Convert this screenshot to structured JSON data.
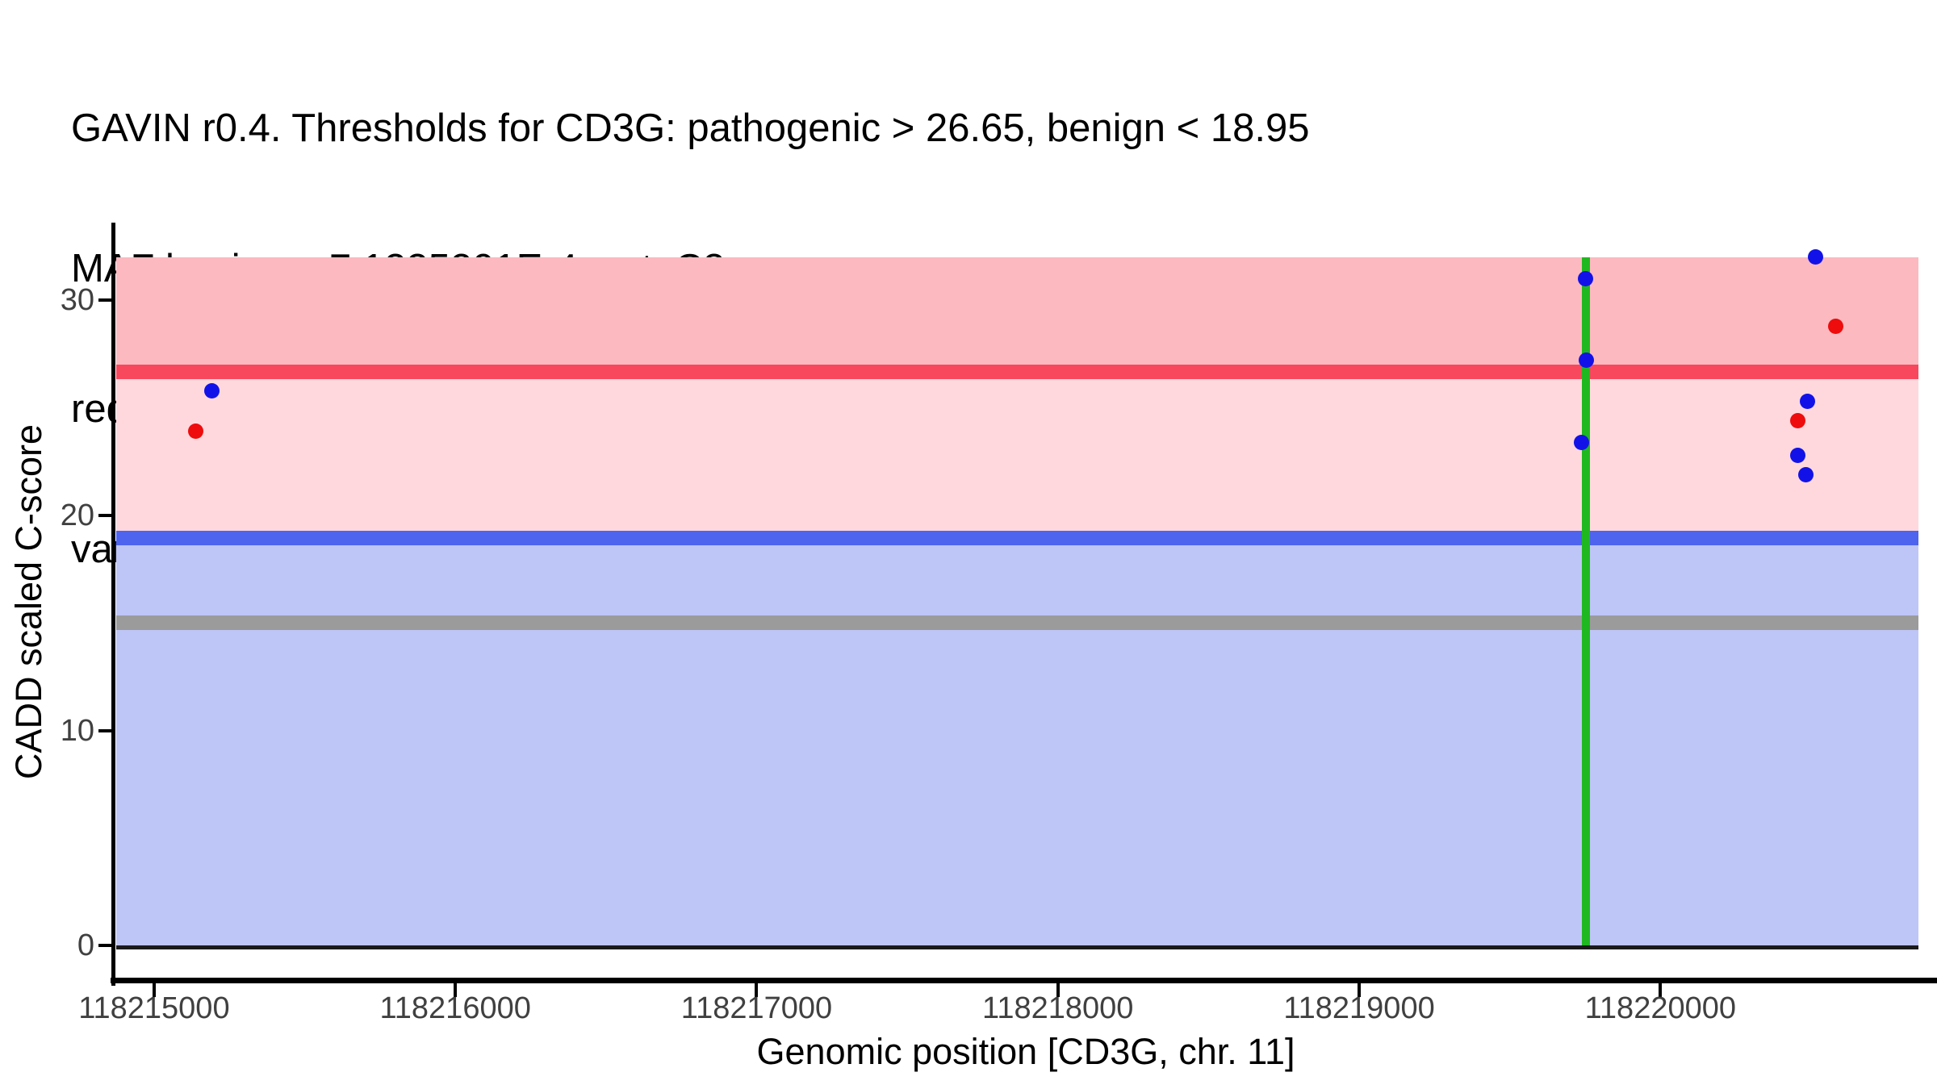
{
  "title": {
    "lines": [
      "GAVIN r0.4. Thresholds for CD3G: pathogenic > 26.65, benign < 18.95",
      "MAF benign > 7.1225201E-4, cat: C3",
      "red: ClinVar pathogenic variants, blue: rarity & impact matched gnomAD",
      "variants, green: RefSeq exons, grey: genome-wide fallback threshold"
    ]
  },
  "colors": {
    "pathogenic_band": "#FCB9C0",
    "pathogenic_line": "#F8485E",
    "intermediate_band": "#FED8DD",
    "benign_line": "#4E63EE",
    "benign_band": "#BEC5F7",
    "fallback_line": "#9B9B9B",
    "zero_line": "#1A1A1A",
    "exon_line": "#20B820",
    "clinvar_point": "#EE0C0C",
    "gnomad_point": "#1212E8",
    "axis_line": "#000000",
    "tick_label": "#404040"
  },
  "chart_data": {
    "type": "scatter",
    "title": "GAVIN r0.4. Thresholds for CD3G: pathogenic > 26.65, benign < 18.95; MAF benign > 7.1225201E-4, cat: C3",
    "xlabel": "Genomic position [CD3G, chr. 11]",
    "ylabel": "CADD scaled C-score",
    "x_ticks": [
      118215000,
      118216000,
      118217000,
      118218000,
      118219000,
      118220000
    ],
    "y_ticks": [
      0,
      10,
      20,
      30
    ],
    "x_range": [
      118214869,
      118220918
    ],
    "y_range": [
      -1.6,
      33.6
    ],
    "grid": false,
    "legend": "described in title text",
    "band": {
      "x_from": 118214875,
      "x_to": 118220857,
      "y_from": 0,
      "y_to": 32
    },
    "thresholds": [
      {
        "name": "pathogenic",
        "value": 26.65,
        "color_key": "pathogenic_line"
      },
      {
        "name": "benign",
        "value": 18.95,
        "color_key": "benign_line"
      },
      {
        "name": "genome_wide_fallback",
        "value": 15,
        "color_key": "fallback_line"
      }
    ],
    "zero_baseline": 0,
    "exons": [
      {
        "pos": 118219754,
        "y_from": 0,
        "y_to": 32
      }
    ],
    "series": [
      {
        "name": "ClinVar pathogenic variants",
        "color_key": "clinvar_point",
        "points": [
          {
            "pos": 118215137,
            "cadd": 23.9
          },
          {
            "pos": 118220457,
            "cadd": 24.4
          },
          {
            "pos": 118220583,
            "cadd": 28.8
          }
        ]
      },
      {
        "name": "rarity & impact matched gnomAD variants",
        "color_key": "gnomad_point",
        "points": [
          {
            "pos": 118215192,
            "cadd": 25.8
          },
          {
            "pos": 118219739,
            "cadd": 23.4
          },
          {
            "pos": 118219752,
            "cadd": 31.0
          },
          {
            "pos": 118219755,
            "cadd": 27.2
          },
          {
            "pos": 118220457,
            "cadd": 22.8
          },
          {
            "pos": 118220484,
            "cadd": 21.9
          },
          {
            "pos": 118220489,
            "cadd": 25.3
          },
          {
            "pos": 118220516,
            "cadd": 32.0
          }
        ]
      }
    ]
  }
}
